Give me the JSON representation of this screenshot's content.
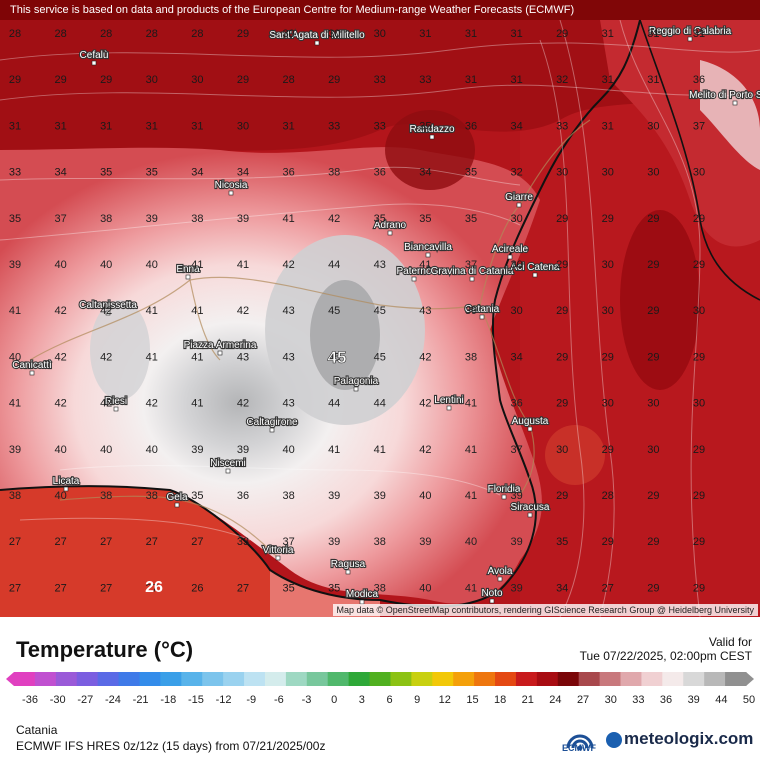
{
  "notice": "This service is based on data and products of the European Centre for Medium-range Weather Forecasts (ECMWF)",
  "attribution": "Map data © OpenStreetMap contributors, rendering GIScience Research Group @ Heidelberg University",
  "legend": {
    "title": "Temperature (°C)",
    "valid_label": "Valid for",
    "valid_date": "Tue 07/22/2025, 02:00pm CEST",
    "ticks": [
      "-36",
      "-30",
      "-27",
      "-24",
      "-21",
      "-18",
      "-15",
      "-12",
      "-9",
      "-6",
      "-3",
      "0",
      "3",
      "6",
      "9",
      "12",
      "15",
      "18",
      "21",
      "24",
      "27",
      "30",
      "33",
      "36",
      "39",
      "44",
      "50"
    ]
  },
  "footer": {
    "location": "Catania",
    "model": "ECMWF IFS HRES 0z/12z (15 days) from 07/21/2025/00z",
    "ecmwf_logo_text": "ECMWF",
    "brand": "meteologix.com"
  },
  "places": [
    {
      "name": "Cefalù"
    },
    {
      "name": "Sant'Agata di Militello"
    },
    {
      "name": "Reggio di Calabria"
    },
    {
      "name": "Melito di Porto Salvo"
    },
    {
      "name": "Randazzo"
    },
    {
      "name": "Nicosia"
    },
    {
      "name": "Giarre"
    },
    {
      "name": "Adrano"
    },
    {
      "name": "Biancavilla"
    },
    {
      "name": "Acireale"
    },
    {
      "name": "Enna"
    },
    {
      "name": "Paternò"
    },
    {
      "name": "Gravina di Catania"
    },
    {
      "name": "Aci Catena"
    },
    {
      "name": "Catania"
    },
    {
      "name": "Caltanissetta"
    },
    {
      "name": "Piazza Armerina"
    },
    {
      "name": "Canicattì"
    },
    {
      "name": "Palagonia"
    },
    {
      "name": "Riesi"
    },
    {
      "name": "Lentini"
    },
    {
      "name": "Caltagirone"
    },
    {
      "name": "Augusta"
    },
    {
      "name": "Niscemi"
    },
    {
      "name": "Licata"
    },
    {
      "name": "Gela"
    },
    {
      "name": "Floridia"
    },
    {
      "name": "Siracusa"
    },
    {
      "name": "Vittoria"
    },
    {
      "name": "Ragusa"
    },
    {
      "name": "Modica"
    },
    {
      "name": "Avola"
    },
    {
      "name": "Noto"
    }
  ],
  "grid_values": [
    [
      "28",
      "28",
      "28",
      "28",
      "28",
      "29",
      "30",
      "30",
      "30",
      "31",
      "31",
      "31",
      "29",
      "31",
      "31",
      "31"
    ],
    [
      "29",
      "29",
      "29",
      "30",
      "30",
      "29",
      "28",
      "29",
      "33",
      "33",
      "31",
      "31",
      "32",
      "31",
      "31",
      "36"
    ],
    [
      "31",
      "31",
      "31",
      "31",
      "31",
      "30",
      "31",
      "33",
      "33",
      "35",
      "36",
      "34",
      "33",
      "31",
      "30",
      "37"
    ],
    [
      "33",
      "34",
      "35",
      "35",
      "34",
      "34",
      "36",
      "38",
      "36",
      "34",
      "35",
      "32",
      "30",
      "30",
      "30",
      "30"
    ],
    [
      "35",
      "37",
      "38",
      "39",
      "38",
      "39",
      "41",
      "42",
      "35",
      "35",
      "35",
      "30",
      "29",
      "29",
      "29",
      "29"
    ],
    [
      "39",
      "40",
      "40",
      "40",
      "41",
      "41",
      "42",
      "44",
      "43",
      "41",
      "37",
      "30",
      "29",
      "30",
      "29",
      "29"
    ],
    [
      "41",
      "42",
      "42",
      "41",
      "41",
      "42",
      "43",
      "45",
      "45",
      "43",
      "39",
      "30",
      "29",
      "30",
      "29",
      "30"
    ],
    [
      "40",
      "42",
      "42",
      "41",
      "41",
      "43",
      "43",
      "45",
      "45",
      "42",
      "38",
      "34",
      "29",
      "29",
      "29",
      "29"
    ],
    [
      "41",
      "42",
      "42",
      "42",
      "41",
      "42",
      "43",
      "44",
      "44",
      "42",
      "41",
      "36",
      "29",
      "30",
      "30",
      "30"
    ],
    [
      "39",
      "40",
      "40",
      "40",
      "39",
      "39",
      "40",
      "41",
      "41",
      "42",
      "41",
      "37",
      "30",
      "29",
      "30",
      "29"
    ],
    [
      "38",
      "40",
      "38",
      "38",
      "35",
      "36",
      "38",
      "39",
      "39",
      "40",
      "41",
      "39",
      "29",
      "28",
      "29",
      "29"
    ],
    [
      "27",
      "27",
      "27",
      "27",
      "27",
      "33",
      "37",
      "39",
      "38",
      "39",
      "40",
      "39",
      "35",
      "29",
      "29",
      "29"
    ],
    [
      "27",
      "27",
      "27",
      "27",
      "26",
      "27",
      "35",
      "35",
      "38",
      "40",
      "41",
      "39",
      "34",
      "27",
      "29",
      "29"
    ]
  ],
  "grid_highlight": {
    "value": "45"
  },
  "grid_low": {
    "value": "26"
  },
  "palette": {
    "sea_deep": "#a81418",
    "sea_mid": "#c21d22",
    "sea_light": "#d13a3a",
    "land_hot": "#f3d6d6",
    "land_core": "#cfcfd0",
    "land_max": "#a9a9ab",
    "coast": "#111111"
  }
}
